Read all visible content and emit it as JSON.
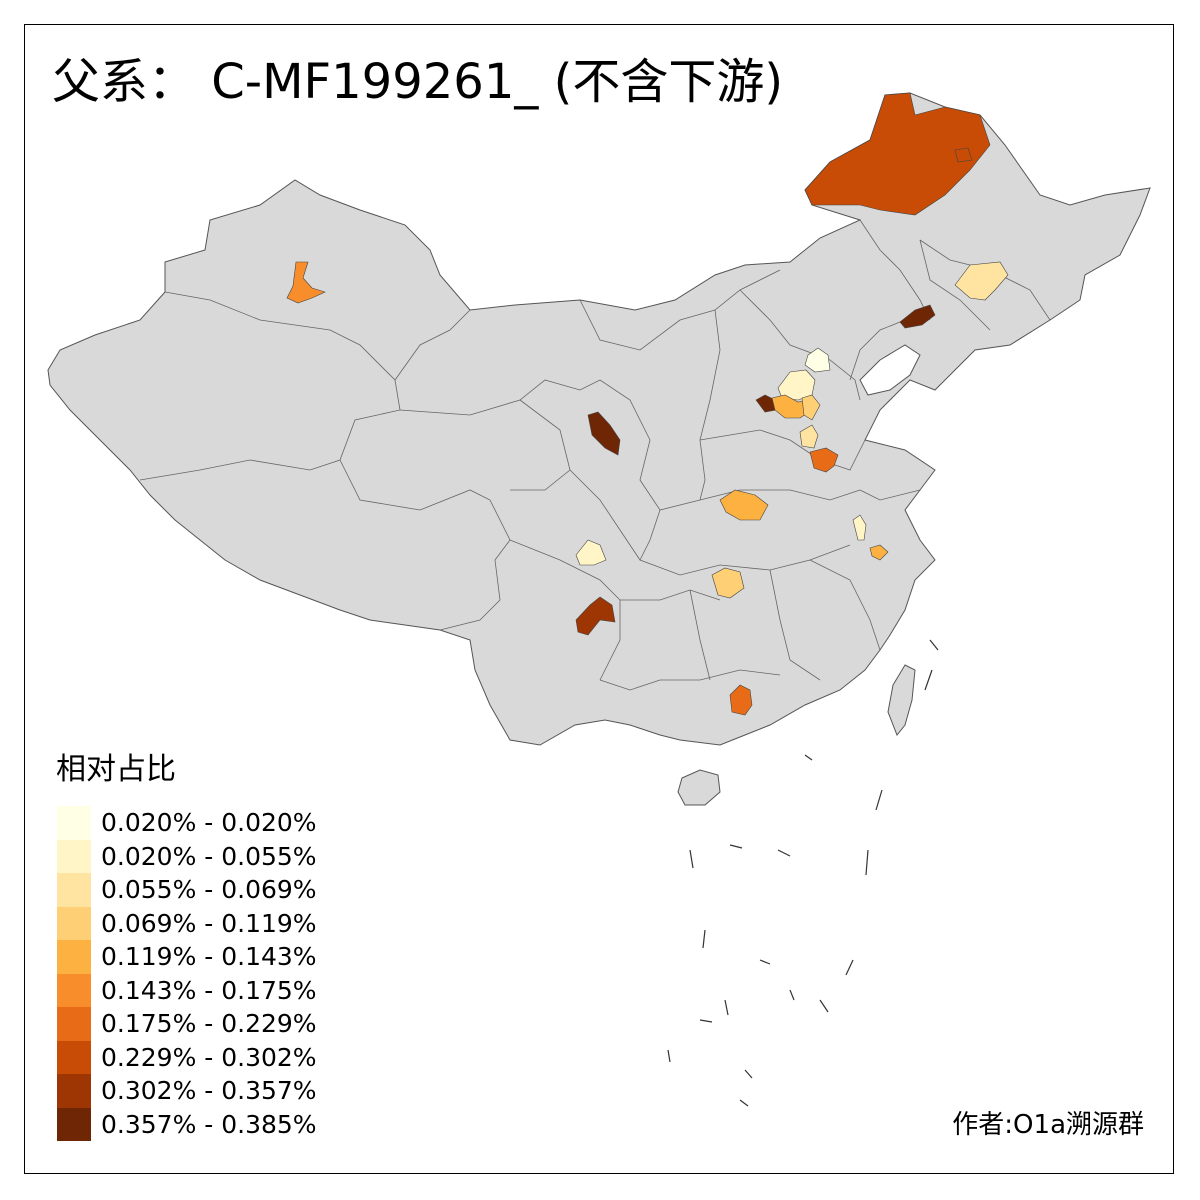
{
  "title": "父系： C-MF199261_ (不含下游)",
  "legend": {
    "title": "相对占比",
    "items": [
      {
        "label": "0.020% - 0.020%",
        "color": "#FFFFE5"
      },
      {
        "label": "0.020% - 0.055%",
        "color": "#FFF5C7"
      },
      {
        "label": "0.055% - 0.069%",
        "color": "#FEE4A0"
      },
      {
        "label": "0.069% - 0.119%",
        "color": "#FECF74"
      },
      {
        "label": "0.119% - 0.143%",
        "color": "#FDB140"
      },
      {
        "label": "0.143% - 0.175%",
        "color": "#F88E2B"
      },
      {
        "label": "0.175% - 0.229%",
        "color": "#E86C17"
      },
      {
        "label": "0.229% - 0.302%",
        "color": "#C84C06"
      },
      {
        "label": "0.302% - 0.357%",
        "color": "#9E3604"
      },
      {
        "label": "0.357% - 0.385%",
        "color": "#6F2605"
      }
    ]
  },
  "credit": "作者:O1a溯源群",
  "map": {
    "base_color": "#D9D9D9",
    "border_color": "#555555",
    "highlighted_regions": [
      {
        "name": "hulunbuir",
        "class": 7
      },
      {
        "name": "jilin-area",
        "class": 2
      },
      {
        "name": "liaoning-area",
        "class": 9
      },
      {
        "name": "xinjiang-north",
        "class": 5
      },
      {
        "name": "beijing-area",
        "class": 0
      },
      {
        "name": "hebei-area-1",
        "class": 1
      },
      {
        "name": "shanxi-north-area",
        "class": 9
      },
      {
        "name": "hebei-area-2",
        "class": 4
      },
      {
        "name": "hebei-area-3",
        "class": 3
      },
      {
        "name": "hebei-area-4",
        "class": 2
      },
      {
        "name": "shandong-area",
        "class": 6
      },
      {
        "name": "gansu-area",
        "class": 9
      },
      {
        "name": "henan-area",
        "class": 4
      },
      {
        "name": "anhui-area",
        "class": 1
      },
      {
        "name": "jiangsu-area",
        "class": 4
      },
      {
        "name": "sichuan-area",
        "class": 1
      },
      {
        "name": "hubei-area",
        "class": 3
      },
      {
        "name": "yunnan-area",
        "class": 8
      },
      {
        "name": "guangxi-area",
        "class": 6
      }
    ]
  }
}
